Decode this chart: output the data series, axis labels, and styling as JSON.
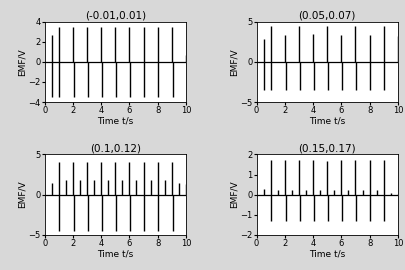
{
  "subplots": [
    {
      "title": "(-0.01,0.01)",
      "ylim": [
        -4,
        4
      ],
      "yticks": [
        -4,
        -2,
        0,
        2,
        4
      ],
      "spikes": [
        [
          0.5,
          2.7
        ],
        [
          0.55,
          -3.5
        ],
        [
          1.0,
          3.5
        ],
        [
          1.05,
          -3.5
        ],
        [
          2.0,
          3.5
        ],
        [
          2.05,
          -3.5
        ],
        [
          3.0,
          3.5
        ],
        [
          3.05,
          -3.5
        ],
        [
          4.0,
          3.5
        ],
        [
          4.05,
          -3.5
        ],
        [
          5.0,
          3.5
        ],
        [
          5.05,
          -3.5
        ],
        [
          6.0,
          3.5
        ],
        [
          6.05,
          -3.5
        ],
        [
          7.0,
          3.5
        ],
        [
          7.05,
          -3.5
        ],
        [
          8.0,
          3.5
        ],
        [
          8.05,
          -3.5
        ],
        [
          9.0,
          3.5
        ],
        [
          9.05,
          -3.5
        ],
        [
          10.0,
          0.7
        ]
      ]
    },
    {
      "title": "(0.05,0.07)",
      "ylim": [
        -5,
        5
      ],
      "yticks": [
        -5,
        0,
        5
      ],
      "spikes": [
        [
          0.5,
          2.8
        ],
        [
          0.55,
          -3.5
        ],
        [
          1.0,
          4.5
        ],
        [
          1.05,
          -3.5
        ],
        [
          2.0,
          3.3
        ],
        [
          2.05,
          -3.5
        ],
        [
          3.0,
          4.5
        ],
        [
          3.05,
          -3.5
        ],
        [
          4.0,
          3.5
        ],
        [
          4.05,
          -3.5
        ],
        [
          5.0,
          4.5
        ],
        [
          5.05,
          -3.5
        ],
        [
          6.0,
          3.3
        ],
        [
          6.05,
          -3.5
        ],
        [
          7.0,
          4.5
        ],
        [
          7.05,
          -3.5
        ],
        [
          8.0,
          3.3
        ],
        [
          8.05,
          -3.5
        ],
        [
          9.0,
          4.5
        ],
        [
          9.05,
          -3.5
        ],
        [
          10.0,
          3.2
        ]
      ]
    },
    {
      "title": "(0.1,0.12)",
      "ylim": [
        -5,
        5
      ],
      "yticks": [
        -5,
        0,
        5
      ],
      "spikes": [
        [
          0.5,
          1.5
        ],
        [
          1.0,
          4.0
        ],
        [
          1.05,
          -4.5
        ],
        [
          1.5,
          1.8
        ],
        [
          2.0,
          4.0
        ],
        [
          2.05,
          -4.5
        ],
        [
          2.5,
          1.8
        ],
        [
          3.0,
          4.0
        ],
        [
          3.05,
          -4.5
        ],
        [
          3.5,
          1.8
        ],
        [
          4.0,
          4.0
        ],
        [
          4.05,
          -4.5
        ],
        [
          4.5,
          1.8
        ],
        [
          5.0,
          4.0
        ],
        [
          5.05,
          -4.5
        ],
        [
          5.5,
          1.8
        ],
        [
          6.0,
          4.0
        ],
        [
          6.05,
          -4.5
        ],
        [
          6.5,
          1.8
        ],
        [
          7.0,
          4.0
        ],
        [
          7.05,
          -4.5
        ],
        [
          7.5,
          1.8
        ],
        [
          8.0,
          4.0
        ],
        [
          8.05,
          -4.5
        ],
        [
          8.5,
          1.8
        ],
        [
          9.0,
          4.0
        ],
        [
          9.05,
          -4.5
        ],
        [
          9.5,
          1.5
        ],
        [
          10.0,
          1.3
        ]
      ]
    },
    {
      "title": "(0.15,0.17)",
      "ylim": [
        -2,
        2
      ],
      "yticks": [
        -2,
        -1,
        0,
        1,
        2
      ],
      "spikes": [
        [
          0.5,
          0.3
        ],
        [
          1.0,
          1.7
        ],
        [
          1.05,
          -1.3
        ],
        [
          1.5,
          0.25
        ],
        [
          2.0,
          1.7
        ],
        [
          2.05,
          -1.3
        ],
        [
          2.5,
          0.25
        ],
        [
          3.0,
          1.7
        ],
        [
          3.05,
          -1.3
        ],
        [
          3.5,
          0.25
        ],
        [
          4.0,
          1.7
        ],
        [
          4.05,
          -1.3
        ],
        [
          4.5,
          0.25
        ],
        [
          5.0,
          1.65
        ],
        [
          5.05,
          -1.3
        ],
        [
          5.5,
          0.25
        ],
        [
          6.0,
          1.7
        ],
        [
          6.05,
          -1.3
        ],
        [
          6.5,
          0.25
        ],
        [
          7.0,
          1.7
        ],
        [
          7.05,
          -1.3
        ],
        [
          7.5,
          0.25
        ],
        [
          8.0,
          1.7
        ],
        [
          8.05,
          -1.3
        ],
        [
          8.5,
          0.25
        ],
        [
          9.0,
          1.7
        ],
        [
          9.05,
          -1.3
        ],
        [
          9.5,
          0.1
        ],
        [
          10.0,
          0.05
        ]
      ]
    }
  ],
  "xlabel": "Time t/s",
  "ylabel": "EMF/V",
  "xlim": [
    0,
    10
  ],
  "xticks": [
    0,
    2,
    4,
    6,
    8,
    10
  ],
  "bg_color": "#d8d8d8",
  "plot_bg": "#ffffff",
  "spike_color": "black",
  "spike_linewidth": 1.0,
  "title_fontsize": 7.5,
  "label_fontsize": 6.5,
  "tick_fontsize": 6
}
